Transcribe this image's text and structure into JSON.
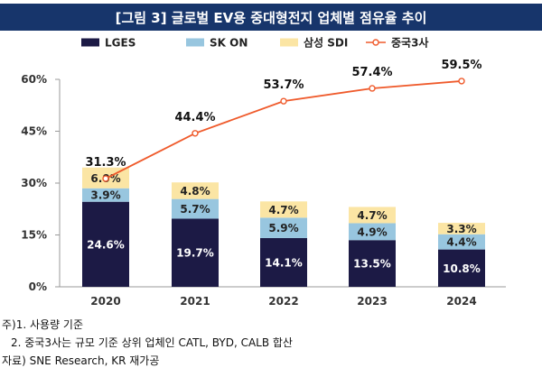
{
  "chart_data": {
    "type": "bar",
    "title": "[그림 3] 글로벌 EV용 중대형전지 업체별 점유율 추이",
    "categories": [
      "2020",
      "2021",
      "2022",
      "2023",
      "2024"
    ],
    "series": [
      {
        "name": "LGES",
        "values": [
          24.6,
          19.7,
          14.1,
          13.5,
          10.8
        ],
        "labels": [
          "24.6%",
          "19.7%",
          "14.1%",
          "13.5%",
          "10.8%"
        ],
        "color": "#1c1a45"
      },
      {
        "name": "SK ON",
        "values": [
          3.9,
          5.7,
          5.9,
          4.9,
          4.4
        ],
        "labels": [
          "3.9%",
          "5.7%",
          "5.9%",
          "4.9%",
          "4.4%"
        ],
        "color": "#98c6df"
      },
      {
        "name": "삼성 SDI",
        "values": [
          6.0,
          4.8,
          4.7,
          4.7,
          3.3
        ],
        "labels": [
          "6.0%",
          "4.8%",
          "4.7%",
          "4.7%",
          "3.3%"
        ],
        "color": "#fbe5a4"
      }
    ],
    "line": {
      "name": "중국3사",
      "values": [
        31.3,
        44.4,
        53.7,
        57.4,
        59.5
      ],
      "labels": [
        "31.3%",
        "44.4%",
        "53.7%",
        "57.4%",
        "59.5%"
      ],
      "color": "#ef5a2b"
    },
    "ylim": [
      0,
      60
    ],
    "yticks": [
      0,
      15,
      30,
      45,
      60
    ],
    "ytick_labels": [
      "0%",
      "15%",
      "30%",
      "45%",
      "60%"
    ],
    "legend_position": "top"
  },
  "notes": {
    "line1": "주)1. 사용량 기준",
    "line2": "2. 중국3사는 규모 기준 상위 업체인 CATL, BYD, CALB 합산",
    "line3": "자료) SNE Research, KR 재가공"
  }
}
